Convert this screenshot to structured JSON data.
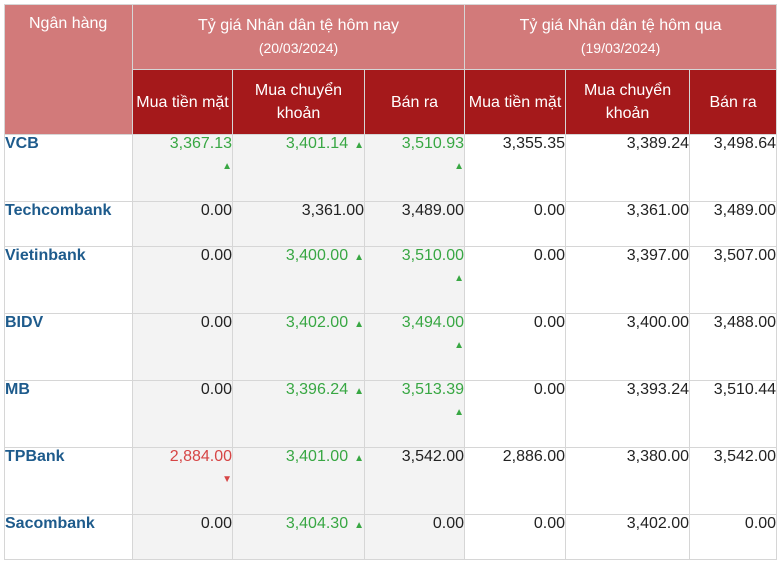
{
  "header": {
    "bank_col": "Ngân hàng",
    "today_group": "Tỷ giá Nhân dân tệ hôm nay",
    "today_date": "(20/03/2024)",
    "yesterday_group": "Tỷ giá Nhân dân tệ hôm qua",
    "yesterday_date": "(19/03/2024)",
    "buy_cash": "Mua tiền mặt",
    "buy_transfer": "Mua chuyển khoản",
    "sell": "Bán ra"
  },
  "colors": {
    "header_light": "#d27a7a",
    "header_dark": "#a5191b",
    "bank_name": "#1e5b8c",
    "up": "#38a743",
    "down": "#d64545"
  },
  "rows": [
    {
      "bank": "VCB",
      "today": [
        {
          "v": "3,367.13",
          "dir": "up",
          "arrow": "below"
        },
        {
          "v": "3,401.14",
          "dir": "up",
          "arrow": "inline"
        },
        {
          "v": "3,510.93",
          "dir": "up",
          "arrow": "below"
        }
      ],
      "yesterday": [
        "3,355.35",
        "3,389.24",
        "3,498.64"
      ]
    },
    {
      "bank": "Techcombank",
      "today": [
        {
          "v": "0.00",
          "dir": "none"
        },
        {
          "v": "3,361.00",
          "dir": "none"
        },
        {
          "v": "3,489.00",
          "dir": "none"
        }
      ],
      "yesterday": [
        "0.00",
        "3,361.00",
        "3,489.00"
      ]
    },
    {
      "bank": "Vietinbank",
      "today": [
        {
          "v": "0.00",
          "dir": "none"
        },
        {
          "v": "3,400.00",
          "dir": "up",
          "arrow": "inline"
        },
        {
          "v": "3,510.00",
          "dir": "up",
          "arrow": "below"
        }
      ],
      "yesterday": [
        "0.00",
        "3,397.00",
        "3,507.00"
      ]
    },
    {
      "bank": "BIDV",
      "today": [
        {
          "v": "0.00",
          "dir": "none"
        },
        {
          "v": "3,402.00",
          "dir": "up",
          "arrow": "inline"
        },
        {
          "v": "3,494.00",
          "dir": "up",
          "arrow": "below"
        }
      ],
      "yesterday": [
        "0.00",
        "3,400.00",
        "3,488.00"
      ]
    },
    {
      "bank": "MB",
      "today": [
        {
          "v": "0.00",
          "dir": "none"
        },
        {
          "v": "3,396.24",
          "dir": "up",
          "arrow": "inline"
        },
        {
          "v": "3,513.39",
          "dir": "up",
          "arrow": "below"
        }
      ],
      "yesterday": [
        "0.00",
        "3,393.24",
        "3,510.44"
      ]
    },
    {
      "bank": "TPBank",
      "today": [
        {
          "v": "2,884.00",
          "dir": "down",
          "arrow": "below"
        },
        {
          "v": "3,401.00",
          "dir": "up",
          "arrow": "inline"
        },
        {
          "v": "3,542.00",
          "dir": "none"
        }
      ],
      "yesterday": [
        "2,886.00",
        "3,380.00",
        "3,542.00"
      ]
    },
    {
      "bank": "Sacombank",
      "today": [
        {
          "v": "0.00",
          "dir": "none"
        },
        {
          "v": "3,404.30",
          "dir": "up",
          "arrow": "inline"
        },
        {
          "v": "0.00",
          "dir": "none"
        }
      ],
      "yesterday": [
        "0.00",
        "3,402.00",
        "0.00"
      ]
    }
  ]
}
